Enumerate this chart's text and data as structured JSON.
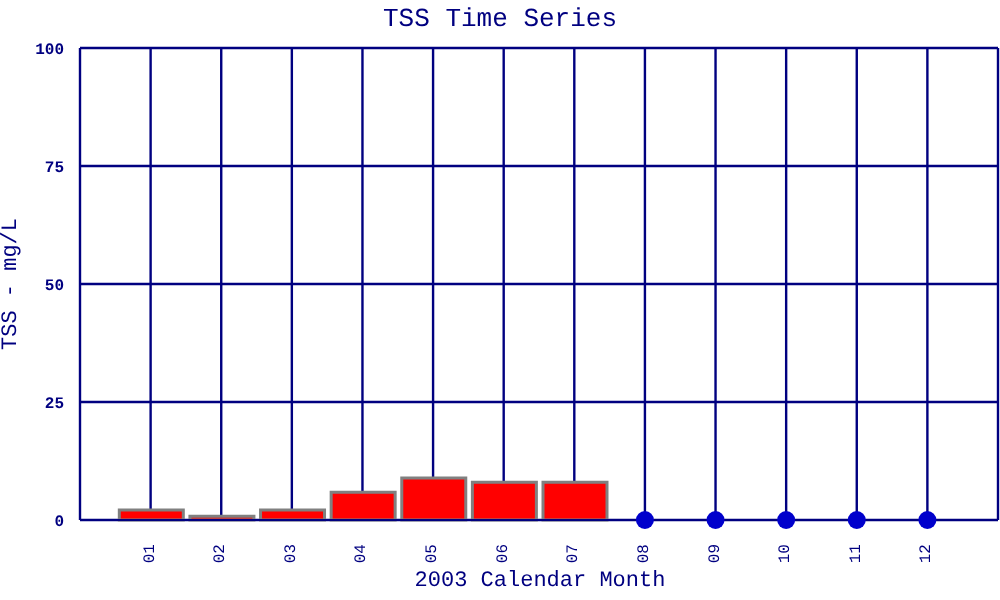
{
  "chart_data": {
    "type": "bar",
    "title": "TSS Time Series",
    "xlabel": "2003 Calendar Month",
    "ylabel": "TSS - mg/L",
    "categories": [
      "01",
      "02",
      "03",
      "04",
      "05",
      "06",
      "07",
      "08",
      "09",
      "10",
      "11",
      "12"
    ],
    "series": [
      {
        "color": "#ff0000",
        "values": [
          2.1,
          0.8,
          2.1,
          5.9,
          8.9,
          8.0,
          8.0,
          null,
          null,
          null,
          null,
          null
        ]
      },
      {
        "type": "scatter",
        "color": "#0000cc",
        "values": [
          null,
          null,
          null,
          null,
          null,
          null,
          null,
          0,
          0,
          0,
          0,
          0
        ]
      }
    ],
    "ylim": [
      0,
      100
    ],
    "yticks": [
      0,
      25,
      50,
      75,
      100
    ],
    "grid": true,
    "legend": false,
    "marker": "circle"
  }
}
